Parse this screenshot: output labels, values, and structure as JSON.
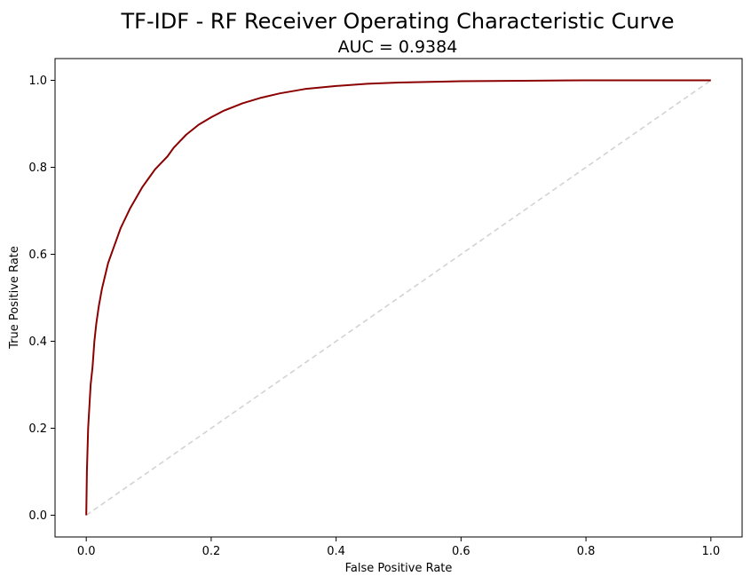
{
  "chart_data": {
    "type": "line",
    "title": "TF-IDF - RF Receiver Operating Characteristic Curve",
    "subtitle": "AUC = 0.9384",
    "xlabel": "False Positive Rate",
    "ylabel": "True Positive Rate",
    "xlim": [
      -0.05,
      1.05
    ],
    "ylim": [
      -0.05,
      1.05
    ],
    "xticks": [
      0.0,
      0.2,
      0.4,
      0.6,
      0.8,
      1.0
    ],
    "xtick_labels": [
      "0.0",
      "0.2",
      "0.4",
      "0.6",
      "0.8",
      "1.0"
    ],
    "yticks": [
      0.0,
      0.2,
      0.4,
      0.6,
      0.8,
      1.0
    ],
    "ytick_labels": [
      "0.0",
      "0.2",
      "0.4",
      "0.6",
      "0.8",
      "1.0"
    ],
    "grid": false,
    "legend": "none",
    "series": [
      {
        "kind": "roc-curve",
        "color": "#8b0000",
        "x": [
          0.0,
          0.001,
          0.003,
          0.005,
          0.007,
          0.01,
          0.013,
          0.016,
          0.02,
          0.025,
          0.03,
          0.035,
          0.04,
          0.045,
          0.05,
          0.055,
          0.06,
          0.07,
          0.08,
          0.09,
          0.1,
          0.11,
          0.12,
          0.13,
          0.14,
          0.15,
          0.16,
          0.18,
          0.2,
          0.22,
          0.25,
          0.28,
          0.31,
          0.35,
          0.4,
          0.45,
          0.5,
          0.6,
          0.7,
          0.8,
          0.9,
          1.0
        ],
        "y": [
          0.0,
          0.1,
          0.2,
          0.25,
          0.3,
          0.34,
          0.4,
          0.44,
          0.48,
          0.52,
          0.55,
          0.58,
          0.6,
          0.62,
          0.64,
          0.66,
          0.675,
          0.705,
          0.73,
          0.755,
          0.775,
          0.795,
          0.81,
          0.825,
          0.845,
          0.86,
          0.875,
          0.898,
          0.915,
          0.93,
          0.947,
          0.96,
          0.97,
          0.98,
          0.987,
          0.992,
          0.995,
          0.998,
          0.999,
          1.0,
          1.0,
          1.0
        ]
      },
      {
        "kind": "chance-diagonal",
        "color": "#d3d3d3",
        "dashed": true,
        "x": [
          0.0,
          1.0
        ],
        "y": [
          0.0,
          1.0
        ]
      }
    ]
  }
}
